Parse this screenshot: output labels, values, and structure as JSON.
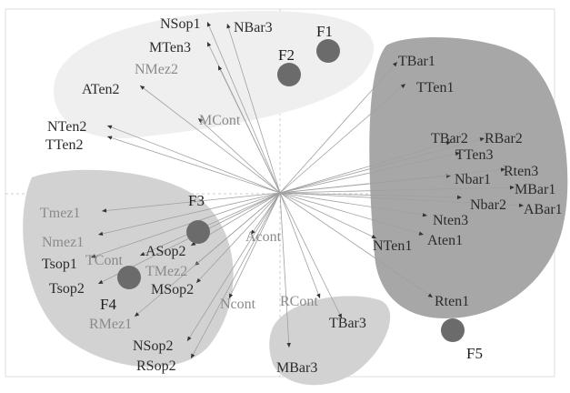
{
  "colors": {
    "cluster_light": "#efefef",
    "cluster_mid": "#d2d2d2",
    "cluster_dark": "#a7a7a7",
    "factor_circle": "#6b6b6b",
    "ray": "#a0a0a0",
    "frame": "#dcdcdc",
    "label_dark": "#2b2b2b",
    "label_light": "#8a8a8a"
  },
  "factors": [
    {
      "id": "F1",
      "label": "F1"
    },
    {
      "id": "F2",
      "label": "F2"
    },
    {
      "id": "F3",
      "label": "F3"
    },
    {
      "id": "F4",
      "label": "F4"
    },
    {
      "id": "F5",
      "label": "F5"
    }
  ],
  "variables": [
    {
      "id": "NSop1",
      "label": "NSop1",
      "shade": "dark"
    },
    {
      "id": "NBar3",
      "label": "NBar3",
      "shade": "dark"
    },
    {
      "id": "MTen3",
      "label": "MTen3",
      "shade": "dark"
    },
    {
      "id": "NMez2",
      "label": "NMez2",
      "shade": "light"
    },
    {
      "id": "ATen2",
      "label": "ATen2",
      "shade": "dark"
    },
    {
      "id": "MCont",
      "label": "MCont",
      "shade": "light"
    },
    {
      "id": "NTen2",
      "label": "NTen2",
      "shade": "dark"
    },
    {
      "id": "TTen2",
      "label": "TTen2",
      "shade": "dark"
    },
    {
      "id": "TBar1",
      "label": "TBar1",
      "shade": "dark"
    },
    {
      "id": "TTen1",
      "label": "TTen1",
      "shade": "dark"
    },
    {
      "id": "TBar2",
      "label": "TBar2",
      "shade": "dark"
    },
    {
      "id": "RBar2",
      "label": "RBar2",
      "shade": "dark"
    },
    {
      "id": "TTen3",
      "label": "TTen3",
      "shade": "dark"
    },
    {
      "id": "Nbar1",
      "label": "Nbar1",
      "shade": "dark"
    },
    {
      "id": "Rten3",
      "label": "Rten3",
      "shade": "dark"
    },
    {
      "id": "MBar1",
      "label": "MBar1",
      "shade": "dark"
    },
    {
      "id": "Nbar2",
      "label": "Nbar2",
      "shade": "dark"
    },
    {
      "id": "ABar1",
      "label": "ABar1",
      "shade": "dark"
    },
    {
      "id": "Nten3",
      "label": "Nten3",
      "shade": "dark"
    },
    {
      "id": "Aten1",
      "label": "Aten1",
      "shade": "dark"
    },
    {
      "id": "NTen1",
      "label": "NTen1",
      "shade": "dark"
    },
    {
      "id": "Rten1",
      "label": "Rten1",
      "shade": "dark"
    },
    {
      "id": "Tmez1",
      "label": "Tmez1",
      "shade": "light"
    },
    {
      "id": "Nmez1",
      "label": "Nmez1",
      "shade": "light"
    },
    {
      "id": "Tsop1",
      "label": "Tsop1",
      "shade": "dark"
    },
    {
      "id": "TCont",
      "label": "TCont",
      "shade": "light"
    },
    {
      "id": "ASop2",
      "label": "ASop2",
      "shade": "dark"
    },
    {
      "id": "TMez2",
      "label": "TMez2",
      "shade": "light"
    },
    {
      "id": "Tsop2",
      "label": "Tsop2",
      "shade": "dark"
    },
    {
      "id": "MSop2",
      "label": "MSop2",
      "shade": "dark"
    },
    {
      "id": "RMez1",
      "label": "RMez1",
      "shade": "light"
    },
    {
      "id": "NSop2",
      "label": "NSop2",
      "shade": "dark"
    },
    {
      "id": "RSop2",
      "label": "RSop2",
      "shade": "dark"
    },
    {
      "id": "Acont",
      "label": "Acont",
      "shade": "light"
    },
    {
      "id": "Ncont",
      "label": "Ncont",
      "shade": "light"
    },
    {
      "id": "RCont",
      "label": "RCont",
      "shade": "light"
    },
    {
      "id": "TBar3",
      "label": "TBar3",
      "shade": "dark"
    },
    {
      "id": "MBar3",
      "label": "MBar3",
      "shade": "dark"
    }
  ]
}
